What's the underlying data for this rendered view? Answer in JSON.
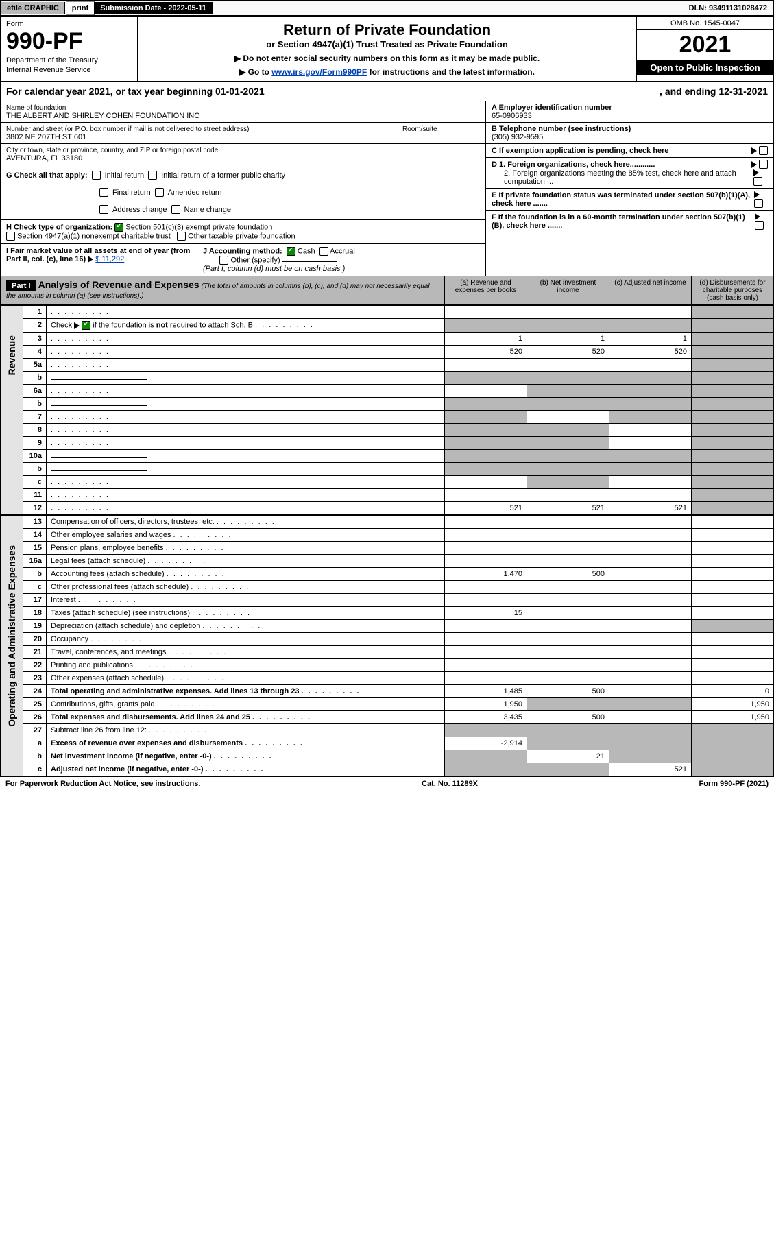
{
  "topbar": {
    "efile": "efile GRAPHIC",
    "print": "print",
    "subdate_lbl": "Submission Date - 2022-05-11",
    "dln": "DLN: 93491131028472"
  },
  "header": {
    "form_word": "Form",
    "form_num": "990-PF",
    "dept1": "Department of the Treasury",
    "dept2": "Internal Revenue Service",
    "title": "Return of Private Foundation",
    "subtitle": "or Section 4947(a)(1) Trust Treated as Private Foundation",
    "instr1": "▶ Do not enter social security numbers on this form as it may be made public.",
    "instr2_pre": "▶ Go to ",
    "instr2_link": "www.irs.gov/Form990PF",
    "instr2_post": " for instructions and the latest information.",
    "omb": "OMB No. 1545-0047",
    "year": "2021",
    "open": "Open to Public Inspection"
  },
  "calyear": {
    "text_pre": "For calendar year 2021, or tax year beginning 01-01-2021",
    "text_mid": ", and ending 12-31-2021"
  },
  "entity": {
    "name_lbl": "Name of foundation",
    "name": "THE ALBERT AND SHIRLEY COHEN FOUNDATION INC",
    "addr_lbl": "Number and street (or P.O. box number if mail is not delivered to street address)",
    "addr": "3802 NE 207TH ST 601",
    "room_lbl": "Room/suite",
    "city_lbl": "City or town, state or province, country, and ZIP or foreign postal code",
    "city": "AVENTURA, FL  33180",
    "a_lbl": "A Employer identification number",
    "a_val": "65-0906933",
    "b_lbl": "B Telephone number (see instructions)",
    "b_val": "(305) 932-9595",
    "c_lbl": "C If exemption application is pending, check here"
  },
  "g": {
    "lbl": "G Check all that apply:",
    "o1": "Initial return",
    "o2": "Initial return of a former public charity",
    "o3": "Final return",
    "o4": "Amended return",
    "o5": "Address change",
    "o6": "Name change"
  },
  "h": {
    "lbl": "H Check type of organization:",
    "o1": "Section 501(c)(3) exempt private foundation",
    "o2": "Section 4947(a)(1) nonexempt charitable trust",
    "o3": "Other taxable private foundation"
  },
  "ij": {
    "i_lbl": "I Fair market value of all assets at end of year (from Part II, col. (c), line 16)",
    "i_val": "$  11,292",
    "j_lbl": "J Accounting method:",
    "j_cash": "Cash",
    "j_acc": "Accrual",
    "j_other": "Other (specify)",
    "j_note": "(Part I, column (d) must be on cash basis.)"
  },
  "def": {
    "d1": "D 1. Foreign organizations, check here............",
    "d2": "2. Foreign organizations meeting the 85% test, check here and attach computation ...",
    "e": "E  If private foundation status was terminated under section 507(b)(1)(A), check here .......",
    "f": "F  If the foundation is in a 60-month termination under section 507(b)(1)(B), check here .......  "
  },
  "part1": {
    "tag": "Part I",
    "title": "Analysis of Revenue and Expenses",
    "note": "(The total of amounts in columns (b), (c), and (d) may not necessarily equal the amounts in column (a) (see instructions).)",
    "cols": {
      "a": "(a)   Revenue and expenses per books",
      "b": "(b)   Net investment income",
      "c": "(c)   Adjusted net income",
      "d": "(d)  Disbursements for charitable purposes (cash basis only)"
    }
  },
  "sides": {
    "rev": "Revenue",
    "exp": "Operating and Administrative Expenses"
  },
  "rows": [
    {
      "n": "1",
      "d": "",
      "a": "",
      "b": "",
      "c": "",
      "sd": true
    },
    {
      "n": "2",
      "d": "",
      "a": "",
      "b": "",
      "c": "",
      "sa": true,
      "sb": true,
      "sc": true,
      "sd": true,
      "checknote": true
    },
    {
      "n": "3",
      "d": "",
      "a": "1",
      "b": "1",
      "c": "1",
      "sd": true
    },
    {
      "n": "4",
      "d": "",
      "a": "520",
      "b": "520",
      "c": "520",
      "sd": true
    },
    {
      "n": "5a",
      "d": "",
      "a": "",
      "b": "",
      "c": "",
      "sd": true
    },
    {
      "n": "b",
      "d": "",
      "a": "",
      "b": "",
      "c": "",
      "sa": true,
      "sb": true,
      "sc": true,
      "sd": true,
      "fill": true
    },
    {
      "n": "6a",
      "d": "",
      "a": "",
      "b": "",
      "c": "",
      "sb": true,
      "sc": true,
      "sd": true
    },
    {
      "n": "b",
      "d": "",
      "a": "",
      "b": "",
      "c": "",
      "sa": true,
      "sb": true,
      "sc": true,
      "sd": true,
      "fill": true
    },
    {
      "n": "7",
      "d": "",
      "a": "",
      "b": "",
      "c": "",
      "sa": true,
      "sc": true,
      "sd": true
    },
    {
      "n": "8",
      "d": "",
      "a": "",
      "b": "",
      "c": "",
      "sa": true,
      "sb": true,
      "sd": true
    },
    {
      "n": "9",
      "d": "",
      "a": "",
      "b": "",
      "c": "",
      "sa": true,
      "sb": true,
      "sd": true
    },
    {
      "n": "10a",
      "d": "",
      "a": "",
      "b": "",
      "c": "",
      "sa": true,
      "sb": true,
      "sc": true,
      "sd": true,
      "fill": true
    },
    {
      "n": "b",
      "d": "",
      "a": "",
      "b": "",
      "c": "",
      "sa": true,
      "sb": true,
      "sc": true,
      "sd": true,
      "fill": true
    },
    {
      "n": "c",
      "d": "",
      "a": "",
      "b": "",
      "c": "",
      "sb": true,
      "sd": true
    },
    {
      "n": "11",
      "d": "",
      "a": "",
      "b": "",
      "c": "",
      "sd": true
    },
    {
      "n": "12",
      "d": "",
      "a": "521",
      "b": "521",
      "c": "521",
      "sd": true,
      "bold": true
    }
  ],
  "exp_rows": [
    {
      "n": "13",
      "d": "",
      "a": "",
      "b": "",
      "c": ""
    },
    {
      "n": "14",
      "d": "",
      "a": "",
      "b": "",
      "c": ""
    },
    {
      "n": "15",
      "d": "",
      "a": "",
      "b": "",
      "c": ""
    },
    {
      "n": "16a",
      "d": "",
      "a": "",
      "b": "",
      "c": ""
    },
    {
      "n": "b",
      "d": "",
      "a": "1,470",
      "b": "500",
      "c": ""
    },
    {
      "n": "c",
      "d": "",
      "a": "",
      "b": "",
      "c": ""
    },
    {
      "n": "17",
      "d": "",
      "a": "",
      "b": "",
      "c": ""
    },
    {
      "n": "18",
      "d": "",
      "a": "15",
      "b": "",
      "c": ""
    },
    {
      "n": "19",
      "d": "",
      "a": "",
      "b": "",
      "c": "",
      "sd": true
    },
    {
      "n": "20",
      "d": "",
      "a": "",
      "b": "",
      "c": ""
    },
    {
      "n": "21",
      "d": "",
      "a": "",
      "b": "",
      "c": ""
    },
    {
      "n": "22",
      "d": "",
      "a": "",
      "b": "",
      "c": ""
    },
    {
      "n": "23",
      "d": "",
      "a": "",
      "b": "",
      "c": ""
    },
    {
      "n": "24",
      "d": "0",
      "a": "1,485",
      "b": "500",
      "c": "",
      "bold": true
    },
    {
      "n": "25",
      "d": "1,950",
      "a": "1,950",
      "b": "",
      "c": "",
      "sb": true,
      "sc": true
    },
    {
      "n": "26",
      "d": "1,950",
      "a": "3,435",
      "b": "500",
      "c": "",
      "bold": true
    },
    {
      "n": "27",
      "d": "",
      "a": "",
      "b": "",
      "c": "",
      "sa": true,
      "sb": true,
      "sc": true,
      "sd": true
    },
    {
      "n": "a",
      "d": "",
      "a": "-2,914",
      "b": "",
      "c": "",
      "sb": true,
      "sc": true,
      "sd": true,
      "bold": true
    },
    {
      "n": "b",
      "d": "",
      "a": "",
      "b": "21",
      "c": "",
      "sa": true,
      "sc": true,
      "sd": true,
      "bold": true
    },
    {
      "n": "c",
      "d": "",
      "a": "",
      "b": "",
      "c": "521",
      "sa": true,
      "sb": true,
      "sd": true,
      "bold": true
    }
  ],
  "footer": {
    "left": "For Paperwork Reduction Act Notice, see instructions.",
    "mid": "Cat. No. 11289X",
    "right": "Form 990-PF (2021)"
  }
}
